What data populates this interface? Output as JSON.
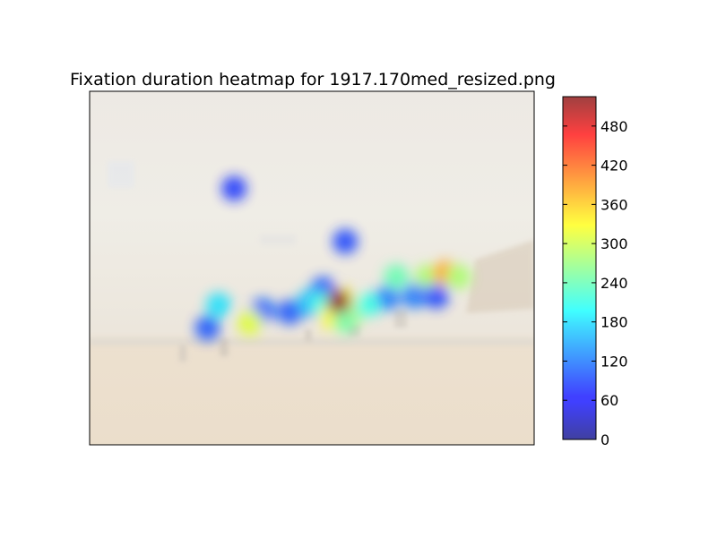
{
  "chart_data": {
    "type": "heatmap",
    "title": "Fixation duration heatmap for 1917.170med_resized.png",
    "colormap": "jet",
    "background": "painting of a beach scene with figures and buildings on the right, shown faded beneath the heatmap",
    "colorbar": {
      "vmin": 0,
      "vmax": 525,
      "ticks": [
        0,
        60,
        120,
        180,
        240,
        300,
        360,
        420,
        480
      ],
      "tick_labels": [
        "0",
        "60",
        "120",
        "180",
        "240",
        "300",
        "360",
        "420",
        "480"
      ]
    },
    "xlim": [
      0,
      1
    ],
    "ylim": [
      0,
      1
    ],
    "fixations": [
      {
        "x": 0.325,
        "y": 0.725,
        "value": 80
      },
      {
        "x": 0.575,
        "y": 0.575,
        "value": 90
      },
      {
        "x": 0.525,
        "y": 0.44,
        "value": 100
      },
      {
        "x": 0.29,
        "y": 0.395,
        "value": 180
      },
      {
        "x": 0.39,
        "y": 0.38,
        "value": 110
      },
      {
        "x": 0.45,
        "y": 0.375,
        "value": 100
      },
      {
        "x": 0.36,
        "y": 0.345,
        "value": 310
      },
      {
        "x": 0.5,
        "y": 0.395,
        "value": 80
      },
      {
        "x": 0.545,
        "y": 0.39,
        "value": 100
      },
      {
        "x": 0.265,
        "y": 0.33,
        "value": 100
      },
      {
        "x": 0.495,
        "y": 0.405,
        "value": 160
      },
      {
        "x": 0.525,
        "y": 0.395,
        "value": 210
      },
      {
        "x": 0.6,
        "y": 0.38,
        "value": 300
      },
      {
        "x": 0.67,
        "y": 0.415,
        "value": 120
      },
      {
        "x": 0.57,
        "y": 0.41,
        "value": 330
      },
      {
        "x": 0.545,
        "y": 0.36,
        "value": 330
      },
      {
        "x": 0.575,
        "y": 0.35,
        "value": 250
      },
      {
        "x": 0.56,
        "y": 0.405,
        "value": 525
      },
      {
        "x": 0.625,
        "y": 0.395,
        "value": 210
      },
      {
        "x": 0.755,
        "y": 0.44,
        "value": 140
      },
      {
        "x": 0.69,
        "y": 0.475,
        "value": 240
      },
      {
        "x": 0.76,
        "y": 0.475,
        "value": 280
      },
      {
        "x": 0.8,
        "y": 0.485,
        "value": 380
      },
      {
        "x": 0.83,
        "y": 0.475,
        "value": 280
      },
      {
        "x": 0.73,
        "y": 0.42,
        "value": 120
      },
      {
        "x": 0.78,
        "y": 0.42,
        "value": 90
      }
    ]
  }
}
